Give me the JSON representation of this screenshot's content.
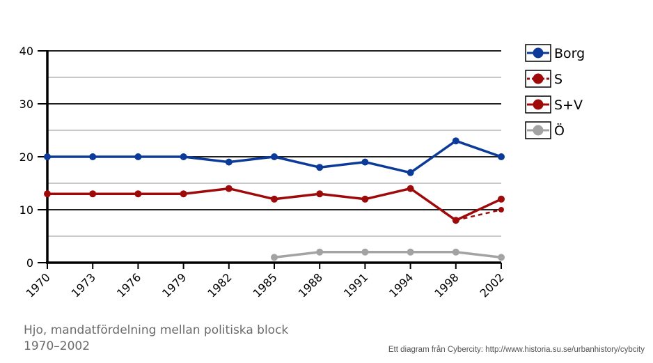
{
  "chart_data": {
    "type": "line",
    "caption": "Hjo, mandatfördelning mellan politiska block 1970–2002",
    "credit": "Ett diagram från Cybercity: http://www.historia.su.se/urbanhistory/cybcity",
    "categories": [
      "1970",
      "1973",
      "1976",
      "1979",
      "1982",
      "1985",
      "1988",
      "1991",
      "1994",
      "1998",
      "2002"
    ],
    "ylim": [
      0,
      40
    ],
    "yticks": [
      0,
      10,
      20,
      30,
      40
    ],
    "grid": true,
    "legend_position": "right",
    "series": [
      {
        "name": "Borg",
        "color": "#0b3a99",
        "dashed": false,
        "values": [
          20,
          20,
          20,
          20,
          19,
          20,
          18,
          19,
          17,
          23,
          20
        ]
      },
      {
        "name": "S",
        "color": "#9e0a0a",
        "dashed": true,
        "values": [
          null,
          null,
          null,
          null,
          null,
          null,
          null,
          null,
          null,
          8,
          10
        ]
      },
      {
        "name": "S+V",
        "color": "#9e0a0a",
        "dashed": false,
        "values": [
          13,
          13,
          13,
          13,
          14,
          12,
          13,
          12,
          14,
          8,
          12
        ]
      },
      {
        "name": "Ö",
        "color": "#a3a3a3",
        "dashed": false,
        "values": [
          null,
          null,
          null,
          null,
          null,
          1,
          2,
          2,
          2,
          2,
          1
        ]
      }
    ]
  }
}
